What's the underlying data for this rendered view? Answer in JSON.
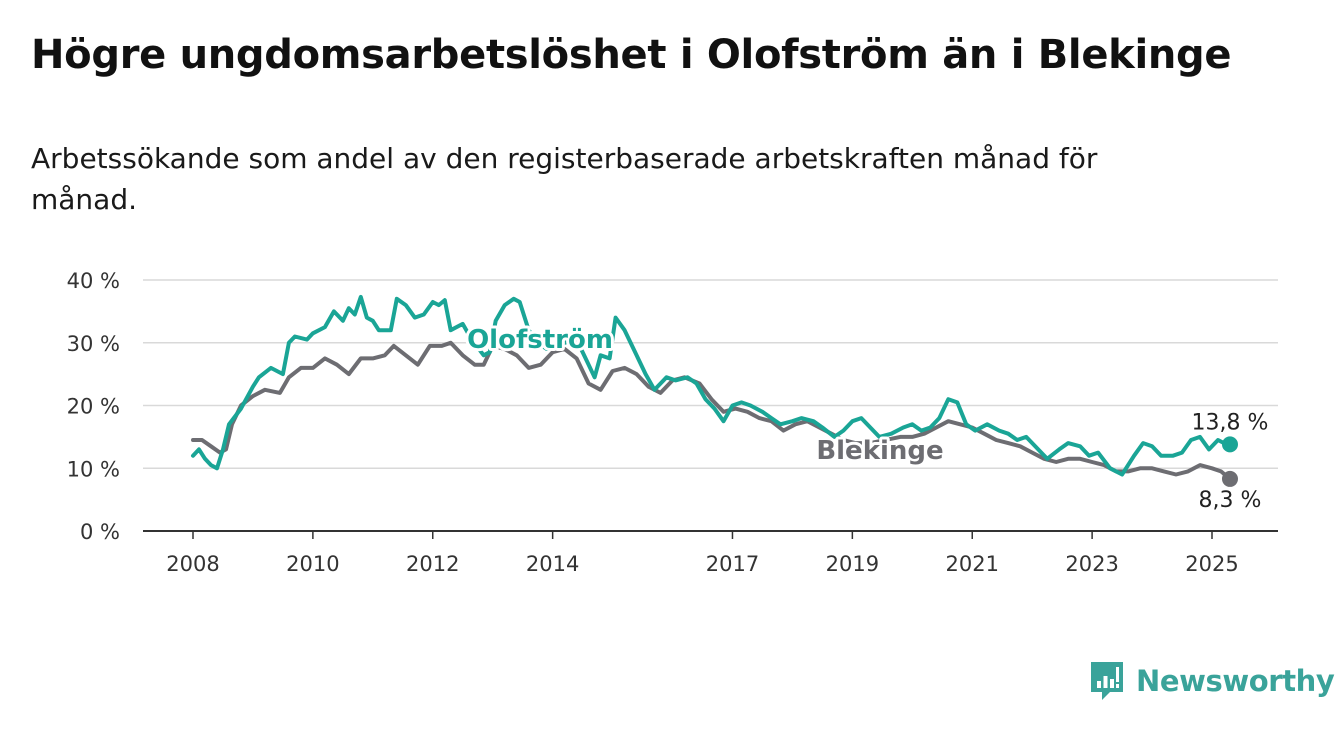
{
  "title": "Högre ungdomsarbetslöshet i Olofström än i Blekinge",
  "subtitle": "Arbetssökande som andel av den registerbaserade arbetskraften månad för månad.",
  "brand": {
    "name": "Newsworthy",
    "icon": "newsworthy-logo-icon",
    "color": "#3aa39a"
  },
  "colors": {
    "olofstrom": "#1aa596",
    "blekinge": "#6d6d72",
    "grid": "#d9d9d9",
    "axis": "#333333"
  },
  "chart_data": {
    "type": "line",
    "title": "Högre ungdomsarbetslöshet i Olofström än i Blekinge",
    "ylim": [
      0,
      40
    ],
    "y_ticks": [
      0,
      10,
      20,
      30,
      40
    ],
    "y_tick_labels": [
      "0 %",
      "10 %",
      "20 %",
      "30 %",
      "40 %"
    ],
    "x_ticks": [
      2008,
      2010,
      2012,
      2014,
      2017,
      2019,
      2021,
      2023,
      2025
    ],
    "x_tick_labels": [
      "2008",
      "2010",
      "2012",
      "2014",
      "2017",
      "2019",
      "2021",
      "2023",
      "2025"
    ],
    "grid": true,
    "legend": "inline labels",
    "series": [
      {
        "name": "Olofström",
        "label_text": "Olofström",
        "end_label": "13,8 %",
        "points": [
          [
            2008.0,
            12.0
          ],
          [
            2008.1,
            13.0
          ],
          [
            2008.2,
            11.5
          ],
          [
            2008.3,
            10.5
          ],
          [
            2008.4,
            10.0
          ],
          [
            2008.5,
            13.0
          ],
          [
            2008.6,
            17.0
          ],
          [
            2008.8,
            19.5
          ],
          [
            2009.0,
            23.0
          ],
          [
            2009.1,
            24.5
          ],
          [
            2009.3,
            26.0
          ],
          [
            2009.5,
            25.0
          ],
          [
            2009.6,
            30.0
          ],
          [
            2009.7,
            31.0
          ],
          [
            2009.9,
            30.5
          ],
          [
            2010.0,
            31.5
          ],
          [
            2010.2,
            32.5
          ],
          [
            2010.35,
            35.0
          ],
          [
            2010.5,
            33.5
          ],
          [
            2010.6,
            35.5
          ],
          [
            2010.7,
            34.5
          ],
          [
            2010.8,
            37.3
          ],
          [
            2010.9,
            34.0
          ],
          [
            2011.0,
            33.5
          ],
          [
            2011.1,
            32.0
          ],
          [
            2011.3,
            32.0
          ],
          [
            2011.4,
            37.0
          ],
          [
            2011.55,
            36.0
          ],
          [
            2011.7,
            34.0
          ],
          [
            2011.85,
            34.5
          ],
          [
            2012.0,
            36.5
          ],
          [
            2012.1,
            36.0
          ],
          [
            2012.2,
            36.8
          ],
          [
            2012.3,
            32.0
          ],
          [
            2012.5,
            33.0
          ],
          [
            2012.65,
            30.5
          ],
          [
            2012.85,
            28.0
          ],
          [
            2012.95,
            28.5
          ],
          [
            2013.05,
            33.5
          ],
          [
            2013.2,
            36.0
          ],
          [
            2013.35,
            37.0
          ],
          [
            2013.45,
            36.5
          ],
          [
            2013.6,
            32.0
          ],
          [
            2013.75,
            30.0
          ],
          [
            2013.9,
            29.0
          ],
          [
            2014.05,
            29.5
          ],
          [
            2014.2,
            30.0
          ],
          [
            2014.4,
            30.5
          ],
          [
            2014.55,
            27.5
          ],
          [
            2014.7,
            24.5
          ],
          [
            2014.8,
            28.0
          ],
          [
            2014.95,
            27.5
          ],
          [
            2015.05,
            34.0
          ],
          [
            2015.2,
            32.0
          ],
          [
            2015.35,
            29.0
          ],
          [
            2015.55,
            25.0
          ],
          [
            2015.7,
            22.5
          ],
          [
            2015.9,
            24.5
          ],
          [
            2016.05,
            24.0
          ],
          [
            2016.25,
            24.5
          ],
          [
            2016.4,
            23.5
          ],
          [
            2016.55,
            21.0
          ],
          [
            2016.7,
            19.5
          ],
          [
            2016.85,
            17.5
          ],
          [
            2017.0,
            20.0
          ],
          [
            2017.15,
            20.5
          ],
          [
            2017.3,
            20.0
          ],
          [
            2017.5,
            19.0
          ],
          [
            2017.65,
            18.0
          ],
          [
            2017.8,
            17.0
          ],
          [
            2018.0,
            17.5
          ],
          [
            2018.15,
            18.0
          ],
          [
            2018.35,
            17.5
          ],
          [
            2018.5,
            16.5
          ],
          [
            2018.7,
            15.0
          ],
          [
            2018.85,
            16.0
          ],
          [
            2019.0,
            17.5
          ],
          [
            2019.15,
            18.0
          ],
          [
            2019.3,
            16.5
          ],
          [
            2019.45,
            15.0
          ],
          [
            2019.65,
            15.5
          ],
          [
            2019.85,
            16.5
          ],
          [
            2020.0,
            17.0
          ],
          [
            2020.15,
            16.0
          ],
          [
            2020.3,
            16.5
          ],
          [
            2020.45,
            18.0
          ],
          [
            2020.6,
            21.0
          ],
          [
            2020.75,
            20.5
          ],
          [
            2020.9,
            17.0
          ],
          [
            2021.05,
            16.0
          ],
          [
            2021.25,
            17.0
          ],
          [
            2021.45,
            16.0
          ],
          [
            2021.6,
            15.5
          ],
          [
            2021.75,
            14.5
          ],
          [
            2021.9,
            15.0
          ],
          [
            2022.1,
            13.0
          ],
          [
            2022.25,
            11.5
          ],
          [
            2022.45,
            13.0
          ],
          [
            2022.6,
            14.0
          ],
          [
            2022.8,
            13.5
          ],
          [
            2022.95,
            12.0
          ],
          [
            2023.1,
            12.5
          ],
          [
            2023.3,
            10.0
          ],
          [
            2023.5,
            9.0
          ],
          [
            2023.7,
            12.0
          ],
          [
            2023.85,
            14.0
          ],
          [
            2024.0,
            13.5
          ],
          [
            2024.15,
            12.0
          ],
          [
            2024.35,
            12.0
          ],
          [
            2024.5,
            12.5
          ],
          [
            2024.65,
            14.5
          ],
          [
            2024.8,
            15.0
          ],
          [
            2024.95,
            13.0
          ],
          [
            2025.1,
            14.5
          ],
          [
            2025.2,
            14.0
          ],
          [
            2025.3,
            13.8
          ]
        ]
      },
      {
        "name": "Blekinge",
        "label_text": "Blekinge",
        "end_label": "8,3 %",
        "points": [
          [
            2008.0,
            14.5
          ],
          [
            2008.15,
            14.5
          ],
          [
            2008.3,
            13.5
          ],
          [
            2008.45,
            12.5
          ],
          [
            2008.55,
            13.0
          ],
          [
            2008.65,
            17.0
          ],
          [
            2008.8,
            20.0
          ],
          [
            2009.0,
            21.5
          ],
          [
            2009.2,
            22.5
          ],
          [
            2009.45,
            22.0
          ],
          [
            2009.6,
            24.5
          ],
          [
            2009.8,
            26.0
          ],
          [
            2010.0,
            26.0
          ],
          [
            2010.2,
            27.5
          ],
          [
            2010.4,
            26.5
          ],
          [
            2010.6,
            25.0
          ],
          [
            2010.8,
            27.5
          ],
          [
            2011.0,
            27.5
          ],
          [
            2011.2,
            28.0
          ],
          [
            2011.35,
            29.5
          ],
          [
            2011.55,
            28.0
          ],
          [
            2011.75,
            26.5
          ],
          [
            2011.95,
            29.5
          ],
          [
            2012.15,
            29.5
          ],
          [
            2012.3,
            30.0
          ],
          [
            2012.5,
            28.0
          ],
          [
            2012.7,
            26.5
          ],
          [
            2012.85,
            26.5
          ],
          [
            2013.0,
            29.5
          ],
          [
            2013.2,
            29.0
          ],
          [
            2013.4,
            28.0
          ],
          [
            2013.6,
            26.0
          ],
          [
            2013.8,
            26.5
          ],
          [
            2014.0,
            28.5
          ],
          [
            2014.2,
            29.0
          ],
          [
            2014.4,
            27.5
          ],
          [
            2014.6,
            23.5
          ],
          [
            2014.8,
            22.5
          ],
          [
            2015.0,
            25.5
          ],
          [
            2015.2,
            26.0
          ],
          [
            2015.4,
            25.0
          ],
          [
            2015.6,
            23.0
          ],
          [
            2015.8,
            22.0
          ],
          [
            2016.0,
            24.0
          ],
          [
            2016.2,
            24.5
          ],
          [
            2016.45,
            23.5
          ],
          [
            2016.65,
            21.0
          ],
          [
            2016.85,
            19.0
          ],
          [
            2017.05,
            19.5
          ],
          [
            2017.25,
            19.0
          ],
          [
            2017.45,
            18.0
          ],
          [
            2017.65,
            17.5
          ],
          [
            2017.85,
            16.0
          ],
          [
            2018.05,
            17.0
          ],
          [
            2018.25,
            17.5
          ],
          [
            2018.45,
            16.5
          ],
          [
            2018.65,
            15.5
          ],
          [
            2018.85,
            14.5
          ],
          [
            2019.05,
            14.0
          ],
          [
            2019.3,
            14.0
          ],
          [
            2019.55,
            14.5
          ],
          [
            2019.8,
            15.0
          ],
          [
            2020.0,
            15.0
          ],
          [
            2020.2,
            15.5
          ],
          [
            2020.4,
            16.5
          ],
          [
            2020.6,
            17.5
          ],
          [
            2020.8,
            17.0
          ],
          [
            2021.0,
            16.5
          ],
          [
            2021.2,
            15.5
          ],
          [
            2021.4,
            14.5
          ],
          [
            2021.6,
            14.0
          ],
          [
            2021.8,
            13.5
          ],
          [
            2022.0,
            12.5
          ],
          [
            2022.2,
            11.5
          ],
          [
            2022.4,
            11.0
          ],
          [
            2022.6,
            11.5
          ],
          [
            2022.8,
            11.5
          ],
          [
            2023.0,
            11.0
          ],
          [
            2023.2,
            10.5
          ],
          [
            2023.4,
            9.5
          ],
          [
            2023.6,
            9.5
          ],
          [
            2023.8,
            10.0
          ],
          [
            2024.0,
            10.0
          ],
          [
            2024.2,
            9.5
          ],
          [
            2024.4,
            9.0
          ],
          [
            2024.6,
            9.5
          ],
          [
            2024.8,
            10.5
          ],
          [
            2025.0,
            10.0
          ],
          [
            2025.15,
            9.5
          ],
          [
            2025.3,
            8.3
          ]
        ]
      }
    ]
  }
}
